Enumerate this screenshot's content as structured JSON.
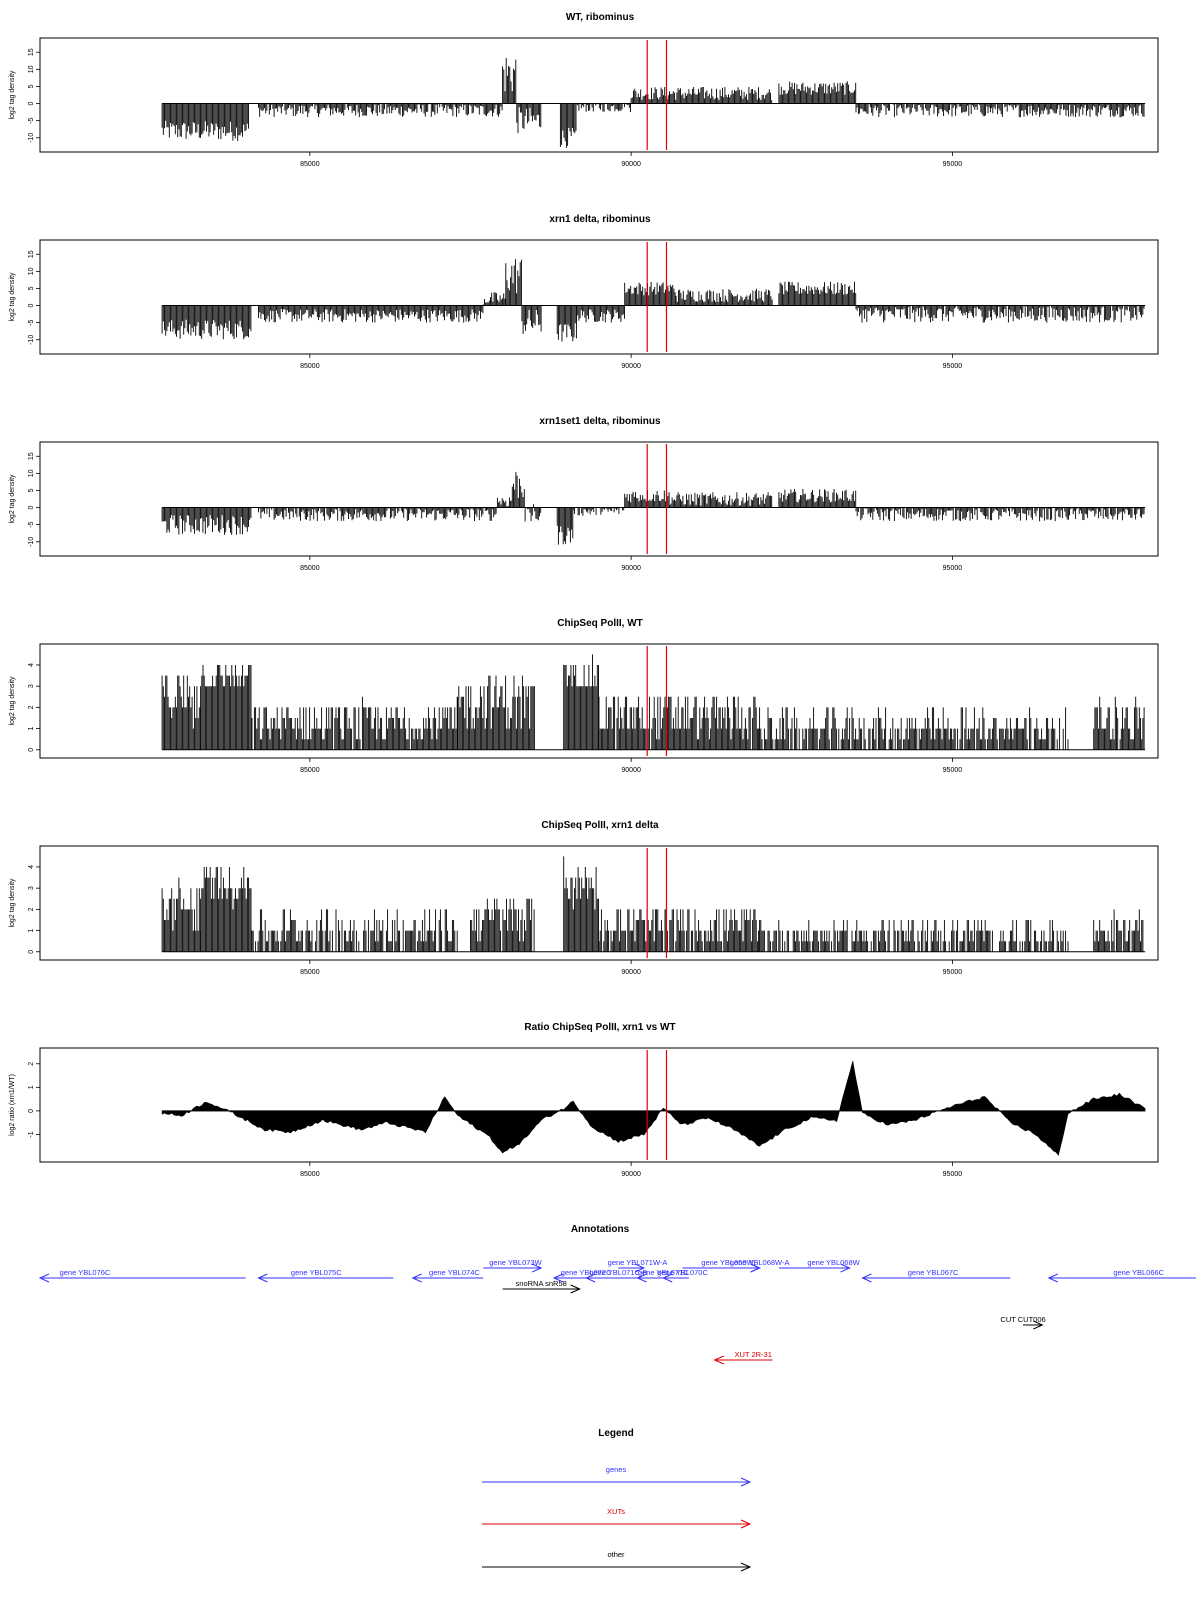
{
  "figure": {
    "panels": [
      {
        "title": "WT, ribominus",
        "ylabel": "log2 tag density",
        "type": "signed",
        "yticks": [
          "15",
          "10",
          "5",
          "0",
          "-5",
          "-10"
        ],
        "yticks_v": [
          15,
          10,
          5,
          0,
          -5,
          -10
        ],
        "ylim": [
          -13,
          18
        ]
      },
      {
        "title": "xrn1 delta, ribominus",
        "ylabel": "log2 tag density",
        "type": "signed",
        "yticks": [
          "15",
          "10",
          "5",
          "0",
          "-5",
          "-10"
        ],
        "yticks_v": [
          15,
          10,
          5,
          0,
          -5,
          -10
        ],
        "ylim": [
          -13,
          18
        ]
      },
      {
        "title": "xrn1set1 delta, ribominus",
        "ylabel": "log2 tag density",
        "type": "signed",
        "yticks": [
          "15",
          "10",
          "5",
          "0",
          "-5",
          "-10"
        ],
        "yticks_v": [
          15,
          10,
          5,
          0,
          -5,
          -10
        ],
        "ylim": [
          -13,
          18
        ]
      },
      {
        "title": "ChipSeq PolII, WT",
        "ylabel": "log2 tag density",
        "type": "positive",
        "yticks": [
          "4",
          "3",
          "2",
          "1",
          "0"
        ],
        "yticks_v": [
          4,
          3,
          2,
          1,
          0
        ],
        "ylim": [
          -0.2,
          4.8
        ]
      },
      {
        "title": "ChipSeq PolII, xrn1 delta",
        "ylabel": "log2 tag density",
        "type": "positive",
        "yticks": [
          "4",
          "3",
          "2",
          "1",
          "0"
        ],
        "yticks_v": [
          4,
          3,
          2,
          1,
          0
        ],
        "ylim": [
          -0.2,
          4.8
        ]
      },
      {
        "title": "Ratio ChipSeq PolII, xrn1 vs WT",
        "ylabel": "log2 ratio (xrn1/WT)",
        "type": "ratio",
        "yticks": [
          "2",
          "1",
          "0",
          "-1"
        ],
        "yticks_v": [
          2,
          1,
          0,
          -1
        ],
        "ylim": [
          -2,
          2.5
        ]
      }
    ],
    "annotations_title": "Annotations",
    "legend_title": "Legend"
  },
  "chart_data": {
    "type": "area",
    "x_range": [
      80800,
      98200
    ],
    "x_ticks": [
      85000,
      90000,
      95000
    ],
    "x_tick_labels": [
      "85000",
      "90000",
      "95000"
    ],
    "marker_positions": [
      90250,
      90550
    ],
    "marker_color": "#e00000",
    "series": [
      {
        "name": "WT, ribominus",
        "segments": [
          {
            "from": 82700,
            "to": 84050,
            "level": -8,
            "var": 3
          },
          {
            "from": 84200,
            "to": 88000,
            "level": -2,
            "var": 2
          },
          {
            "from": 88000,
            "to": 88220,
            "level": 9,
            "var": 7
          },
          {
            "from": 88220,
            "to": 88600,
            "level": -5,
            "var": 4
          },
          {
            "from": 88900,
            "to": 89150,
            "level": -10,
            "var": 3
          },
          {
            "from": 89150,
            "to": 90000,
            "level": -1,
            "var": 1.5
          },
          {
            "from": 90000,
            "to": 90600,
            "level": 3,
            "var": 2
          },
          {
            "from": 90600,
            "to": 92200,
            "level": 3,
            "var": 2
          },
          {
            "from": 92300,
            "to": 93500,
            "level": 4.5,
            "var": 2
          },
          {
            "from": 93500,
            "to": 98000,
            "level": -2,
            "var": 2
          }
        ]
      },
      {
        "name": "xrn1 delta, ribominus",
        "segments": [
          {
            "from": 82700,
            "to": 84100,
            "level": -7,
            "var": 3
          },
          {
            "from": 84200,
            "to": 87700,
            "level": -3,
            "var": 2
          },
          {
            "from": 87700,
            "to": 88050,
            "level": 2,
            "var": 2
          },
          {
            "from": 88050,
            "to": 88300,
            "level": 9,
            "var": 6
          },
          {
            "from": 88300,
            "to": 88600,
            "level": -5,
            "var": 4
          },
          {
            "from": 88850,
            "to": 89150,
            "level": -8,
            "var": 3
          },
          {
            "from": 89150,
            "to": 89900,
            "level": -3,
            "var": 2
          },
          {
            "from": 89900,
            "to": 90700,
            "level": 5,
            "var": 2
          },
          {
            "from": 90700,
            "to": 92200,
            "level": 3,
            "var": 2
          },
          {
            "from": 92300,
            "to": 93500,
            "level": 5,
            "var": 2
          },
          {
            "from": 93500,
            "to": 98000,
            "level": -2.5,
            "var": 2.5
          }
        ]
      },
      {
        "name": "xrn1set1 delta, ribominus",
        "segments": [
          {
            "from": 82700,
            "to": 84100,
            "level": -5,
            "var": 3
          },
          {
            "from": 84200,
            "to": 87900,
            "level": -2,
            "var": 2
          },
          {
            "from": 87900,
            "to": 88150,
            "level": 2,
            "var": 2
          },
          {
            "from": 88150,
            "to": 88350,
            "level": 7,
            "var": 5
          },
          {
            "from": 88350,
            "to": 88600,
            "level": -2,
            "var": 3
          },
          {
            "from": 88850,
            "to": 89100,
            "level": -8,
            "var": 3
          },
          {
            "from": 89100,
            "to": 89900,
            "level": -1,
            "var": 1.5
          },
          {
            "from": 89900,
            "to": 90600,
            "level": 3.5,
            "var": 2
          },
          {
            "from": 90600,
            "to": 92200,
            "level": 2.5,
            "var": 2
          },
          {
            "from": 92300,
            "to": 93500,
            "level": 3.5,
            "var": 2
          },
          {
            "from": 93500,
            "to": 98000,
            "level": -2,
            "var": 2
          }
        ]
      },
      {
        "name": "ChipSeq PolII, WT",
        "segments": [
          {
            "from": 82700,
            "to": 83300,
            "level": 2.6,
            "var": 1.2
          },
          {
            "from": 83300,
            "to": 84100,
            "level": 3.5,
            "var": 0.6
          },
          {
            "from": 84100,
            "to": 87300,
            "level": 1.3,
            "var": 1.0
          },
          {
            "from": 87300,
            "to": 88500,
            "level": 2.3,
            "var": 1.2
          },
          {
            "from": 88950,
            "to": 89500,
            "level": 3.6,
            "var": 0.8
          },
          {
            "from": 89500,
            "to": 92000,
            "level": 1.6,
            "var": 1.1
          },
          {
            "from": 92000,
            "to": 96800,
            "level": 1.0,
            "var": 0.9
          },
          {
            "from": 97200,
            "to": 98000,
            "level": 1.4,
            "var": 1.0
          }
        ]
      },
      {
        "name": "ChipSeq PolII, xrn1 delta",
        "segments": [
          {
            "from": 82700,
            "to": 83300,
            "level": 2.2,
            "var": 1.2
          },
          {
            "from": 83300,
            "to": 84100,
            "level": 3.2,
            "var": 0.8
          },
          {
            "from": 84100,
            "to": 87300,
            "level": 1.0,
            "var": 1.0
          },
          {
            "from": 87500,
            "to": 88500,
            "level": 1.6,
            "var": 1.1
          },
          {
            "from": 88950,
            "to": 89500,
            "level": 3.3,
            "var": 1.0
          },
          {
            "from": 89500,
            "to": 92000,
            "level": 1.2,
            "var": 1.0
          },
          {
            "from": 92000,
            "to": 96800,
            "level": 0.8,
            "var": 0.8
          },
          {
            "from": 97200,
            "to": 98000,
            "level": 1.0,
            "var": 0.8
          }
        ]
      },
      {
        "name": "Ratio ChipSeq PolII, xrn1 vs WT",
        "points": [
          [
            82700,
            -0.1
          ],
          [
            83000,
            -0.2
          ],
          [
            83400,
            0.4
          ],
          [
            83800,
            -0.1
          ],
          [
            84300,
            -0.8
          ],
          [
            84700,
            -0.9
          ],
          [
            85200,
            -0.4
          ],
          [
            85800,
            -0.8
          ],
          [
            86200,
            -0.5
          ],
          [
            86800,
            -0.9
          ],
          [
            87100,
            0.6
          ],
          [
            87300,
            -0.2
          ],
          [
            87800,
            -1.1
          ],
          [
            88000,
            -1.8
          ],
          [
            88300,
            -1.3
          ],
          [
            88600,
            -0.4
          ],
          [
            88950,
            0.1
          ],
          [
            89100,
            0.4
          ],
          [
            89400,
            -0.7
          ],
          [
            89800,
            -1.3
          ],
          [
            90200,
            -1.0
          ],
          [
            90500,
            0.1
          ],
          [
            90800,
            -0.6
          ],
          [
            91200,
            -0.3
          ],
          [
            91600,
            -0.8
          ],
          [
            92000,
            -1.5
          ],
          [
            92400,
            -0.8
          ],
          [
            92800,
            -0.3
          ],
          [
            93200,
            -0.4
          ],
          [
            93450,
            2.1
          ],
          [
            93600,
            -0.1
          ],
          [
            94000,
            -0.6
          ],
          [
            94400,
            -0.4
          ],
          [
            95000,
            0.2
          ],
          [
            95500,
            0.6
          ],
          [
            95900,
            -0.5
          ],
          [
            96300,
            -1.0
          ],
          [
            96650,
            -1.9
          ],
          [
            96800,
            -0.1
          ],
          [
            97200,
            0.5
          ],
          [
            97600,
            0.7
          ],
          [
            98000,
            0.1
          ]
        ]
      }
    ],
    "features": [
      {
        "label": "gene YBL076C",
        "start": 80800,
        "end": 84000,
        "strand": "-",
        "type": "gene",
        "row": 1,
        "label_x": 81500
      },
      {
        "label": "gene YBL075C",
        "start": 84200,
        "end": 86300,
        "strand": "-",
        "type": "gene",
        "row": 1,
        "label_x": 85100
      },
      {
        "label": "gene YBL074C",
        "start": 86600,
        "end": 87700,
        "strand": "-",
        "type": "gene",
        "row": 1,
        "label_x": 87250
      },
      {
        "label": "gene YBL073W",
        "start": 87700,
        "end": 88600,
        "strand": "+",
        "type": "gene",
        "row": 0,
        "label_x": 88200
      },
      {
        "label": "snoRNA snR58",
        "start": 88000,
        "end": 89200,
        "strand": "+",
        "type": "other",
        "row": 2,
        "label_x": 88600
      },
      {
        "label": "gene YBL072C",
        "start": 88800,
        "end": 89700,
        "strand": "-",
        "type": "gene",
        "row": 1,
        "label_x": 89300
      },
      {
        "label": "gene YBL071C-B",
        "start": 89300,
        "end": 90200,
        "strand": "-",
        "type": "gene",
        "row": 1,
        "label_x": 89800
      },
      {
        "label": "gene YBL071W-A",
        "start": 89800,
        "end": 90200,
        "strand": "+",
        "type": "gene",
        "row": 0,
        "label_x": 90100
      },
      {
        "label": "gene YBL071C",
        "start": 90100,
        "end": 90600,
        "strand": "-",
        "type": "gene",
        "row": 1,
        "label_x": 90500
      },
      {
        "label": "gene YBL070C",
        "start": 90500,
        "end": 90900,
        "strand": "-",
        "type": "gene",
        "row": 1,
        "label_x": 90800
      },
      {
        "label": "gene YBL069W",
        "start": 90800,
        "end": 92000,
        "strand": "+",
        "type": "gene",
        "row": 0,
        "label_x": 91500
      },
      {
        "label": "gene YBL068W-A",
        "start": 91000,
        "end": 92000,
        "strand": "+",
        "type": "gene",
        "row": 0,
        "label_x": 92000
      },
      {
        "label": "gene YBL068W",
        "start": 92300,
        "end": 93400,
        "strand": "+",
        "type": "gene",
        "row": 0,
        "label_x": 93150
      },
      {
        "label": "gene YBL067C",
        "start": 93600,
        "end": 95900,
        "strand": "-",
        "type": "gene",
        "row": 1,
        "label_x": 94700
      },
      {
        "label": "gene YBL066C",
        "start": 96500,
        "end": 99000,
        "strand": "-",
        "type": "gene",
        "row": 1,
        "label_x": 97900
      },
      {
        "label": "CUT CUT006",
        "start": 96100,
        "end": 96400,
        "strand": "+",
        "type": "other",
        "row": 3,
        "label_x": 96100
      },
      {
        "label": "XUT 2R-31",
        "start": 91300,
        "end": 92200,
        "strand": "-",
        "type": "xut",
        "row": 4,
        "label_x": 91900
      }
    ],
    "legend": [
      {
        "label": "genes",
        "type": "gene"
      },
      {
        "label": "XUTs",
        "type": "xut"
      },
      {
        "label": "other",
        "type": "other"
      }
    ],
    "colors": {
      "gene": "#3333ff",
      "xut": "#dd0000",
      "other": "#000000"
    }
  }
}
